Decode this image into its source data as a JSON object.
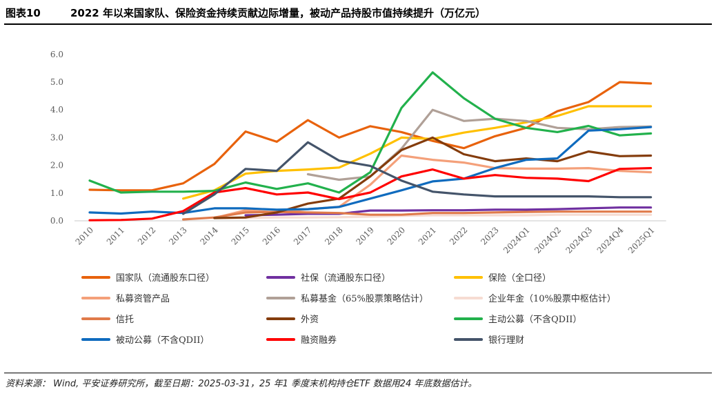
{
  "header": {
    "figure_number": "图表10",
    "title": "2022 年以来国家队、保险资金持续贡献边际增量，被动产品持股市值持续提升（万亿元）"
  },
  "footer": {
    "source": "资料来源： Wind, 平安证券研究所，截至日期：2025-03-31，25 年1 季度末机构持仓ETF 数据用24 年底数据估计。"
  },
  "chart_data": {
    "type": "line",
    "title": "",
    "xlabel": "",
    "ylabel": "",
    "ylim": [
      0,
      6
    ],
    "yticks": [
      "0.0",
      "1.0",
      "2.0",
      "3.0",
      "4.0",
      "5.0",
      "6.0"
    ],
    "grid": false,
    "legend_position": "bottom",
    "categories": [
      "2010",
      "2011",
      "2012",
      "2013",
      "2014",
      "2015",
      "2016",
      "2017",
      "2018",
      "2019",
      "2020",
      "2021",
      "2022",
      "2023",
      "2024Q1",
      "2024Q2",
      "2024Q3",
      "2024Q4",
      "2025Q1"
    ],
    "series": [
      {
        "name": "国家队（流通股东口径）",
        "color": "#E8620C",
        "values": [
          1.12,
          1.1,
          1.1,
          1.35,
          2.05,
          3.22,
          2.85,
          3.63,
          3.0,
          3.41,
          3.2,
          2.88,
          2.62,
          3.05,
          3.35,
          3.95,
          4.28,
          5.0,
          4.95
        ]
      },
      {
        "name": "社保（流通股东口径）",
        "color": "#7030A0",
        "values": [
          null,
          null,
          null,
          null,
          null,
          0.2,
          0.22,
          0.25,
          0.25,
          0.37,
          0.37,
          0.38,
          0.38,
          0.4,
          0.4,
          0.42,
          0.45,
          0.48,
          0.48
        ]
      },
      {
        "name": "保险（全口径）",
        "color": "#FFC000",
        "values": [
          null,
          null,
          null,
          0.8,
          1.1,
          1.7,
          1.8,
          1.85,
          1.92,
          2.42,
          3.0,
          2.95,
          3.18,
          3.35,
          3.55,
          3.78,
          4.13,
          4.13,
          4.13
        ]
      },
      {
        "name": "私募资管产品",
        "color": "#F4A07A",
        "values": [
          null,
          null,
          null,
          null,
          0.1,
          0.38,
          0.3,
          0.42,
          0.5,
          1.3,
          2.35,
          2.2,
          2.1,
          1.9,
          1.88,
          1.88,
          1.9,
          1.8,
          1.75
        ]
      },
      {
        "name": "私募基金（65%股票策略估计）",
        "color": "#B0A097",
        "values": [
          null,
          null,
          null,
          null,
          null,
          null,
          null,
          1.68,
          1.48,
          1.6,
          2.6,
          4.0,
          3.6,
          3.68,
          3.6,
          3.35,
          3.3,
          3.38,
          3.4
        ]
      },
      {
        "name": "企业年金（10%股票中枢估计）",
        "color": "#F6DCD2",
        "values": [
          null,
          null,
          null,
          null,
          0.1,
          0.1,
          0.12,
          0.12,
          0.13,
          0.15,
          0.18,
          0.2,
          0.2,
          0.2,
          0.2,
          0.22,
          0.22,
          0.22,
          0.22
        ]
      },
      {
        "name": "信托",
        "color": "#E07A4A",
        "values": [
          null,
          null,
          null,
          0.05,
          0.12,
          0.3,
          0.32,
          0.3,
          0.28,
          0.22,
          0.22,
          0.28,
          0.28,
          0.3,
          0.32,
          0.33,
          0.33,
          0.33,
          0.33
        ]
      },
      {
        "name": "外资",
        "color": "#843C0C",
        "values": [
          null,
          null,
          null,
          null,
          0.1,
          0.12,
          0.3,
          0.62,
          0.8,
          1.6,
          2.55,
          3.0,
          2.4,
          2.15,
          2.25,
          2.15,
          2.5,
          2.33,
          2.35
        ]
      },
      {
        "name": "主动公募（不含QDII）",
        "color": "#22B14C",
        "values": [
          1.45,
          1.02,
          1.05,
          1.05,
          1.08,
          1.38,
          1.15,
          1.35,
          1.02,
          1.75,
          4.07,
          5.35,
          4.42,
          3.68,
          3.35,
          3.2,
          3.42,
          3.08,
          3.15
        ]
      },
      {
        "name": "被动公募（不含QDII）",
        "color": "#0F6BBE",
        "values": [
          0.3,
          0.26,
          0.33,
          0.28,
          0.45,
          0.45,
          0.4,
          0.42,
          0.5,
          0.8,
          1.1,
          1.42,
          1.52,
          1.9,
          2.2,
          2.25,
          3.25,
          3.3,
          3.38
        ]
      },
      {
        "name": "融资融券",
        "color": "#FF0000",
        "values": [
          0.02,
          0.03,
          0.08,
          0.35,
          1.02,
          1.18,
          0.95,
          1.02,
          0.78,
          1.02,
          1.6,
          1.85,
          1.52,
          1.65,
          1.55,
          1.52,
          1.43,
          1.87,
          1.9
        ]
      },
      {
        "name": "银行理财",
        "color": "#44546A",
        "values": [
          null,
          null,
          null,
          0.25,
          0.95,
          1.87,
          1.8,
          2.83,
          2.17,
          1.98,
          1.45,
          1.05,
          0.95,
          0.88,
          0.88,
          0.88,
          0.88,
          0.85,
          0.85
        ]
      }
    ]
  }
}
